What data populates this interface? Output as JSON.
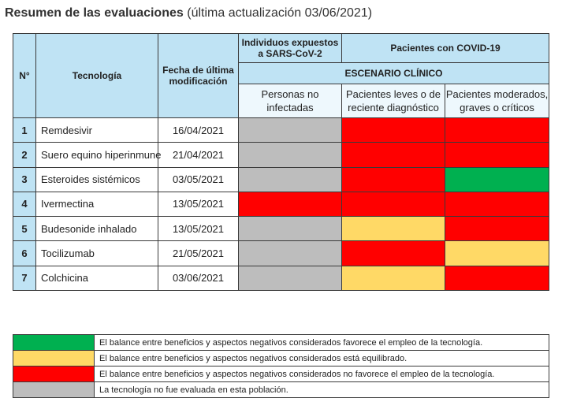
{
  "title": {
    "bold": "Resumen de las evaluaciones",
    "normal": "(última actualización 03/06/2021)"
  },
  "headers": {
    "num": "N°",
    "tech": "Tecnología",
    "date": "Fecha de última modificación",
    "exposed": "Individuos expuestos a SARS-CoV-2",
    "covid": "Pacientes con COVID-19",
    "scenario": "ESCENARIO CLÍNICO",
    "sub_uninfected": "Personas no infectadas",
    "sub_mild": "Pacientes leves o de reciente diagnóstico",
    "sub_severe": "Pacientes moderados, graves o críticos"
  },
  "colors": {
    "green": "#00b050",
    "yellow": "#ffd966",
    "red": "#ff0000",
    "grey": "#bdbdbd",
    "header_bg": "#bfe3f4"
  },
  "rows": [
    {
      "num": "1",
      "tech": "Remdesivir",
      "date": "16/04/2021",
      "status": [
        "grey",
        "red",
        "red"
      ]
    },
    {
      "num": "2",
      "tech": "Suero equino hiperinmune",
      "date": "21/04/2021",
      "status": [
        "grey",
        "red",
        "red"
      ]
    },
    {
      "num": "3",
      "tech": "Esteroides sistémicos",
      "date": "03/05/2021",
      "status": [
        "grey",
        "red",
        "green"
      ]
    },
    {
      "num": "4",
      "tech": "Ivermectina",
      "date": "13/05/2021",
      "status": [
        "red",
        "red",
        "red"
      ]
    },
    {
      "num": "5",
      "tech": "Budesonide inhalado",
      "date": "13/05/2021",
      "status": [
        "grey",
        "yellow",
        "red"
      ]
    },
    {
      "num": "6",
      "tech": "Tocilizumab",
      "date": "21/05/2021",
      "status": [
        "grey",
        "red",
        "yellow"
      ]
    },
    {
      "num": "7",
      "tech": "Colchicina",
      "date": "03/06/2021",
      "status": [
        "grey",
        "yellow",
        "red"
      ]
    }
  ],
  "legend": [
    {
      "color": "green",
      "text": "El balance entre beneficios y aspectos negativos considerados favorece el empleo de la tecnología."
    },
    {
      "color": "yellow",
      "text": "El balance entre beneficios y aspectos negativos considerados está equilibrado."
    },
    {
      "color": "red",
      "text": "El balance entre beneficios y aspectos negativos considerados no favorece el empleo de la tecnología."
    },
    {
      "color": "grey",
      "text": "La tecnología no fue evaluada en esta población."
    }
  ]
}
